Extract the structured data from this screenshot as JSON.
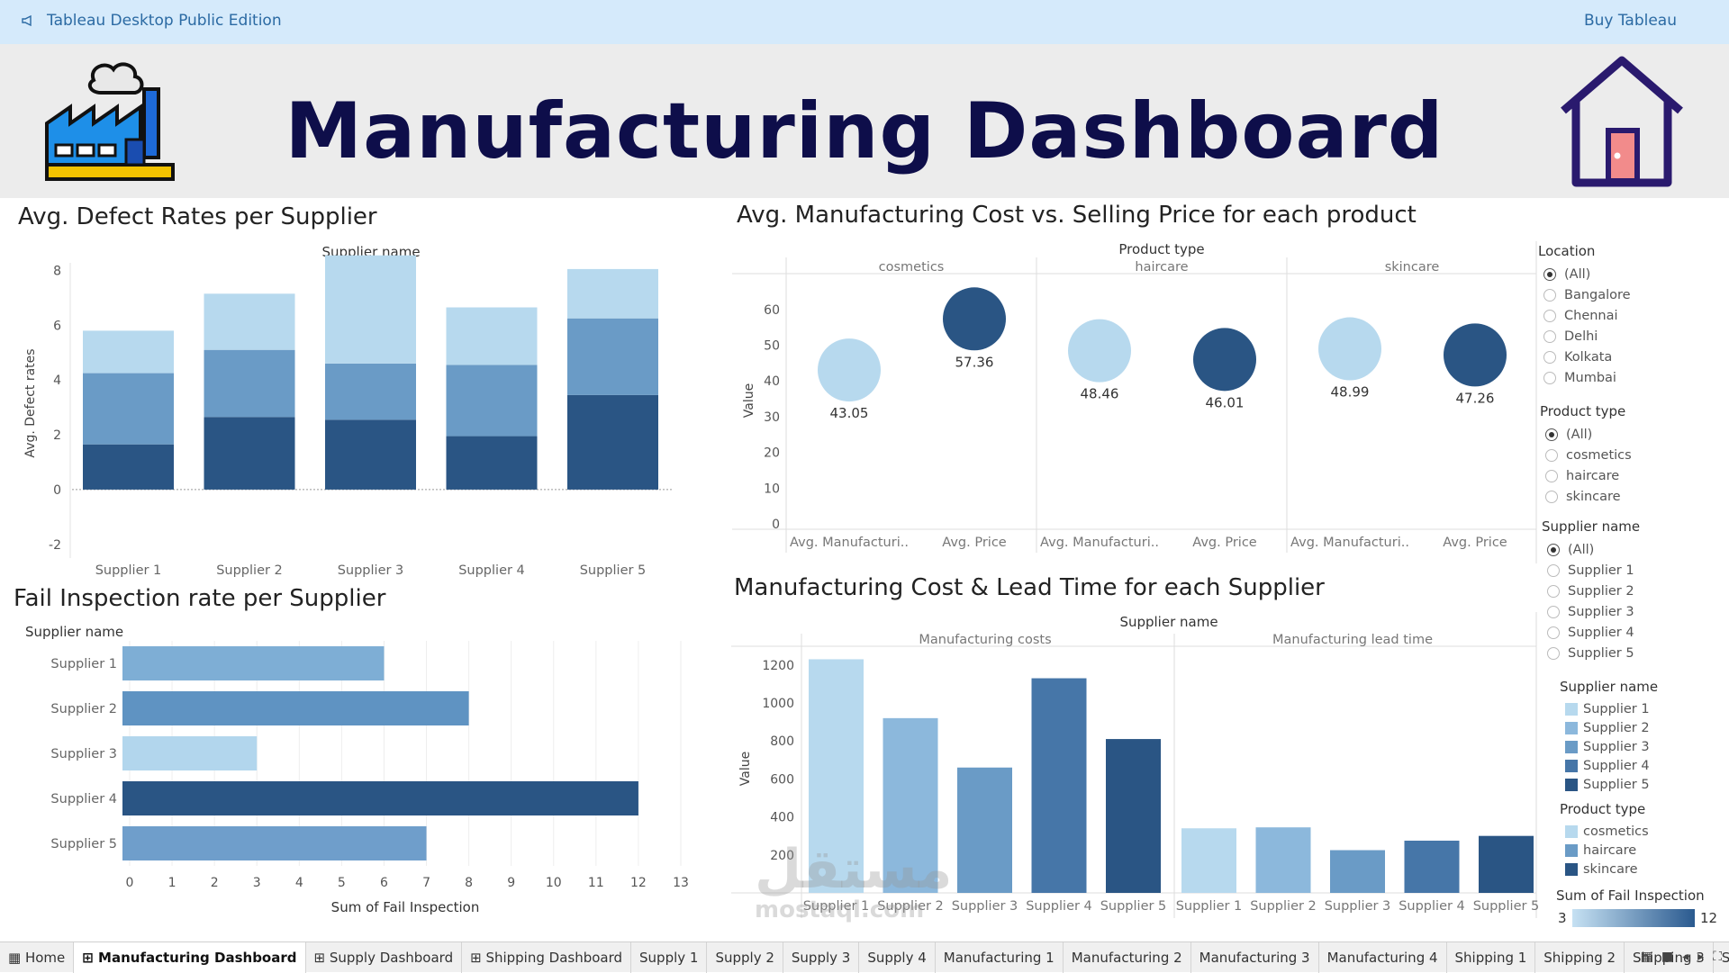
{
  "topbar": {
    "app_name": "Tableau Desktop Public Edition",
    "buy_label": "Buy Tableau"
  },
  "header": {
    "title": "Manufacturing Dashboard",
    "logo_icon": "factory-icon",
    "home_icon": "home-icon"
  },
  "sheets": {
    "defect": "Avg. Defect Rates per Supplier",
    "cost_price": "Avg. Manufacturing Cost vs. Selling Price for each product",
    "fail": "Fail Inspection rate per Supplier",
    "lead": "Manufacturing Cost & Lead Time for each Supplier"
  },
  "colors": {
    "light": "#b7d9ee",
    "mid": "#6a9bc6",
    "dark": "#2a5584",
    "bar1": "#7eaed5",
    "bar2": "#5f93c2",
    "bar3": "#b2d6ed",
    "bar4": "#2a5584",
    "bar5": "#6f9ecb"
  },
  "chart_data": [
    {
      "type": "bar",
      "title": "Avg. Defect Rates per Supplier",
      "header": "Supplier name",
      "ylabel": "Avg. Defect rates",
      "categories": [
        "Supplier 1",
        "Supplier 2",
        "Supplier 3",
        "Supplier 4",
        "Supplier 5"
      ],
      "stacked": true,
      "series": [
        {
          "values": [
            1.65,
            2.65,
            2.55,
            1.95,
            3.45
          ]
        },
        {
          "values": [
            2.6,
            2.45,
            2.05,
            2.6,
            2.8
          ]
        },
        {
          "values": [
            1.55,
            2.05,
            3.95,
            2.1,
            1.8
          ]
        }
      ],
      "yticks": [
        -2,
        0,
        2,
        4,
        6,
        8
      ],
      "ylim": [
        -2.5,
        9
      ],
      "grid": false
    },
    {
      "type": "scatter",
      "title": "Avg. Manufacturing Cost vs. Selling Price for each product",
      "header": "Product type",
      "ylabel": "Value",
      "panes": [
        "cosmetics",
        "haircare",
        "skincare"
      ],
      "x_labels": [
        "Avg. Manufacturi..",
        "Avg. Price"
      ],
      "yticks": [
        0,
        10,
        20,
        30,
        40,
        50,
        60
      ],
      "ylim": [
        -2,
        67
      ],
      "series": [
        {
          "values": [
            43.05,
            48.46,
            48.99
          ]
        },
        {
          "values": [
            57.36,
            46.01,
            47.26
          ]
        }
      ]
    },
    {
      "type": "bar",
      "orientation": "horizontal",
      "title": "Fail Inspection rate per Supplier",
      "header": "Supplier name",
      "xlabel": "Sum of Fail Inspection",
      "categories": [
        "Supplier 1",
        "Supplier 2",
        "Supplier 3",
        "Supplier 4",
        "Supplier 5"
      ],
      "values": [
        6,
        8,
        3,
        12,
        7
      ],
      "xticks": [
        0,
        1,
        2,
        3,
        4,
        5,
        6,
        7,
        8,
        9,
        10,
        11,
        12,
        13
      ],
      "xlim": [
        0,
        13
      ]
    },
    {
      "type": "bar",
      "title": "Manufacturing Cost & Lead Time for each Supplier",
      "header": "Supplier name",
      "ylabel": "Value",
      "panes": [
        "Manufacturing costs",
        "Manufacturing lead time"
      ],
      "categories": [
        "Supplier 1",
        "Supplier 2",
        "Supplier 3",
        "Supplier 4",
        "Supplier 5"
      ],
      "series": [
        {
          "values": [
            1230,
            920,
            660,
            1130,
            810
          ]
        },
        {
          "values": [
            340,
            345,
            225,
            275,
            300
          ]
        }
      ],
      "yticks": [
        200,
        400,
        600,
        800,
        1000,
        1200
      ],
      "ylim": [
        0,
        1270
      ]
    }
  ],
  "filters": {
    "location": {
      "title": "Location",
      "options": [
        "(All)",
        "Bangalore",
        "Chennai",
        "Delhi",
        "Kolkata",
        "Mumbai"
      ]
    },
    "product": {
      "title": "Product type",
      "options": [
        "(All)",
        "cosmetics",
        "haircare",
        "skincare"
      ]
    },
    "supplier": {
      "title": "Supplier name",
      "options": [
        "(All)",
        "Supplier 1",
        "Supplier 2",
        "Supplier 3",
        "Supplier 4",
        "Supplier 5"
      ]
    }
  },
  "legends": {
    "supplier": {
      "title": "Supplier name",
      "items": [
        "Supplier 1",
        "Supplier 2",
        "Supplier 3",
        "Supplier 4",
        "Supplier 5"
      ],
      "colors": [
        "#b7d9ee",
        "#8cb8dc",
        "#6a9bc6",
        "#4676a8",
        "#2a5584"
      ]
    },
    "product": {
      "title": "Product type",
      "items": [
        "cosmetics",
        "haircare",
        "skincare"
      ],
      "colors": [
        "#b7d9ee",
        "#6a9bc6",
        "#2a5584"
      ]
    },
    "fail": {
      "title": "Sum of Fail Inspection",
      "min": "3",
      "max": "12"
    }
  },
  "tabs": [
    "Home",
    "Manufacturing Dashboard",
    "Supply Dashboard",
    "Shipping Dashboard",
    "Supply 1",
    "Supply 2",
    "Supply 3",
    "Supply 4",
    "Manufacturing 1",
    "Manufacturing 2",
    "Manufacturing 3",
    "Manufacturing 4",
    "Shipping 1",
    "Shipping 2",
    "Shipping 3",
    "S"
  ],
  "watermark": {
    "ar": "مستقل",
    "en": "mostaql.com"
  }
}
